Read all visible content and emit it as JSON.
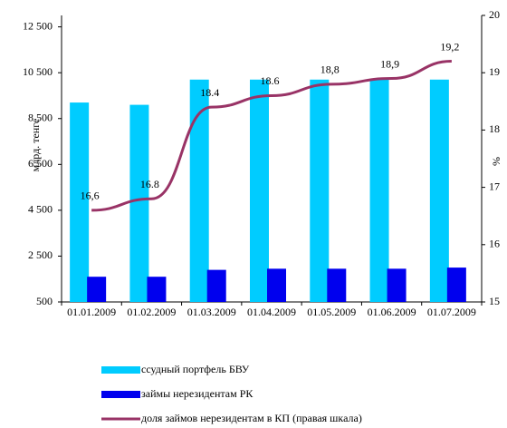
{
  "chart_data": {
    "type": "bar",
    "categories": [
      "01.01.2009",
      "01.02.2009",
      "01.03.2009",
      "01.04.2009",
      "01.05.2009",
      "01.06.2009",
      "01.07.2009"
    ],
    "series": [
      {
        "name": "ссудный портфель БВУ",
        "color": "#00ccff",
        "values": [
          9200,
          9100,
          10200,
          10200,
          10200,
          10200,
          10200
        ]
      },
      {
        "name": "займы нерезидентам РК",
        "color": "#0000ee",
        "values": [
          1600,
          1600,
          1900,
          1950,
          1950,
          1950,
          2000
        ]
      },
      {
        "name": "доля займов нерезидентам в КП (правая шкала)",
        "color": "#993366",
        "type": "line",
        "axis": "y2",
        "values": [
          16.6,
          16.8,
          18.4,
          18.6,
          18.8,
          18.9,
          19.2
        ],
        "value_labels": [
          "16,6",
          "16.8",
          "18.4",
          "18.6",
          "18,8",
          "18,9",
          "19,2"
        ]
      }
    ],
    "ylabel": "млрд. тенге",
    "y2label": "%",
    "ylim": [
      500,
      13000
    ],
    "yticks": [
      500,
      {
        "value": 2500,
        "label": "2 500"
      },
      {
        "value": 4500,
        "label": "4 500"
      },
      {
        "value": 6500,
        "label": "6 500"
      },
      {
        "value": 8500,
        "label": "8 500"
      },
      {
        "value": 10500,
        "label": "10 500"
      },
      {
        "value": 12500,
        "label": "12 500"
      }
    ],
    "y2lim": [
      15,
      20
    ],
    "y2ticks": [
      15,
      16,
      17,
      18,
      19,
      20
    ],
    "legend": "bottom"
  }
}
